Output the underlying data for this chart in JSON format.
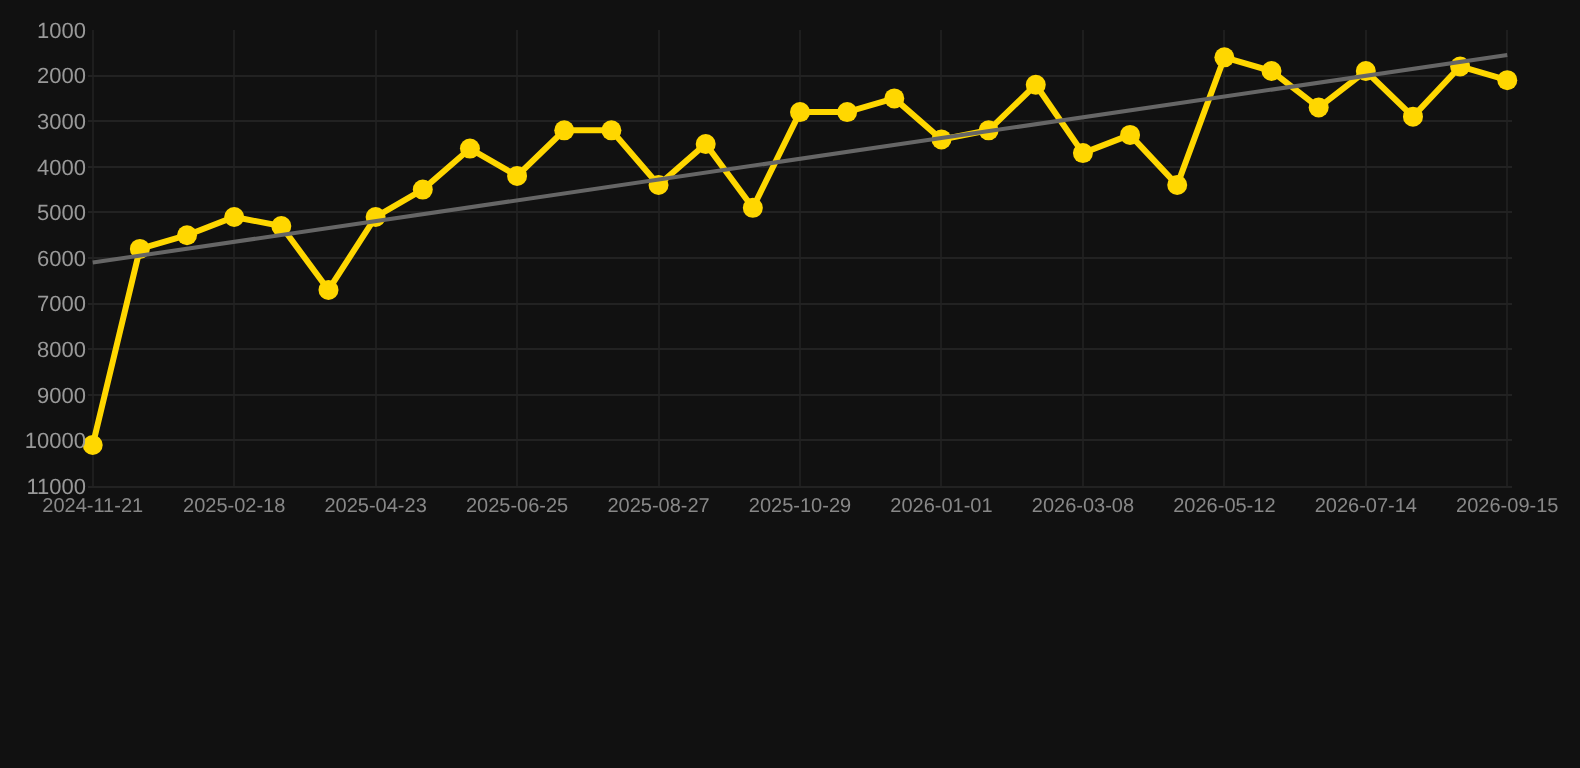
{
  "chart_data": {
    "type": "line",
    "categories": [
      "2024-11-21",
      null,
      null,
      "2025-02-18",
      null,
      null,
      "2025-04-23",
      null,
      null,
      "2025-06-25",
      null,
      null,
      "2025-08-27",
      null,
      null,
      "2025-10-29",
      null,
      null,
      "2026-01-01",
      null,
      null,
      "2026-03-08",
      null,
      null,
      "2026-05-12",
      null,
      null,
      "2026-07-14",
      null,
      null,
      "2026-09-15"
    ],
    "series": [
      {
        "color": "#ffd700",
        "marker": "circle",
        "values": [
          10100,
          5800,
          5500,
          5100,
          5300,
          6700,
          5100,
          4500,
          3600,
          4200,
          3200,
          3200,
          4400,
          3500,
          4900,
          2800,
          2800,
          2500,
          3400,
          3200,
          2200,
          3700,
          3300,
          4400,
          1600,
          1900,
          2700,
          1900,
          2900,
          1800,
          2100
        ]
      },
      {
        "type": "line",
        "color": "#666666",
        "marker": "none",
        "values": [
          6100,
          null,
          null,
          null,
          null,
          null,
          null,
          null,
          null,
          null,
          null,
          null,
          null,
          null,
          null,
          null,
          null,
          null,
          null,
          null,
          null,
          null,
          null,
          null,
          null,
          null,
          null,
          null,
          null,
          null,
          1550
        ]
      }
    ],
    "ylim": [
      11000,
      1000
    ],
    "yticks": [
      1000,
      2000,
      3000,
      4000,
      5000,
      6000,
      7000,
      8000,
      9000,
      10000,
      11000
    ],
    "grid": true,
    "line_style": "solid"
  }
}
